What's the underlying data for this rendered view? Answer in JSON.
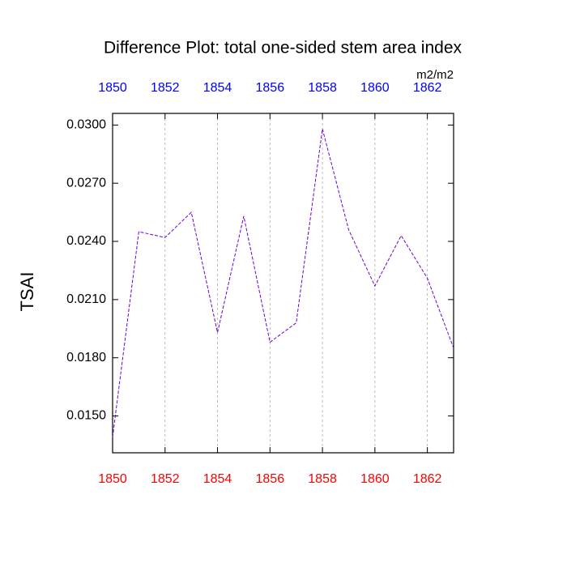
{
  "chart_data": {
    "type": "line",
    "title": "Difference Plot: total one-sided stem area index",
    "y_label": "TSAI",
    "units": "m2/m2",
    "x": [
      1850,
      1851,
      1852,
      1853,
      1854,
      1855,
      1856,
      1857,
      1858,
      1859,
      1860,
      1861,
      1862,
      1863
    ],
    "series": [
      {
        "color": "#6a00d8",
        "values": [
          0.0139,
          0.0245,
          0.0242,
          0.0255,
          0.0193,
          0.0253,
          0.0188,
          0.0198,
          0.0298,
          0.0246,
          0.0217,
          0.0243,
          0.0221,
          0.0185
        ]
      }
    ],
    "xlim": [
      1850,
      1863
    ],
    "xticks": [
      1850,
      1852,
      1854,
      1856,
      1858,
      1860,
      1862
    ],
    "ylim": [
      0.0131,
      0.0306
    ],
    "yticks": [
      {
        "value": 0.015,
        "label": "0.0150"
      },
      {
        "value": 0.018,
        "label": "0.0180"
      },
      {
        "value": 0.021,
        "label": "0.0210"
      },
      {
        "value": 0.024,
        "label": "0.0240"
      },
      {
        "value": 0.027,
        "label": "0.0270"
      },
      {
        "value": 0.03,
        "label": "0.0300"
      }
    ],
    "grid": true,
    "bottom_tick_color": "#ff0000",
    "top_tick_color": "#0000ff"
  }
}
